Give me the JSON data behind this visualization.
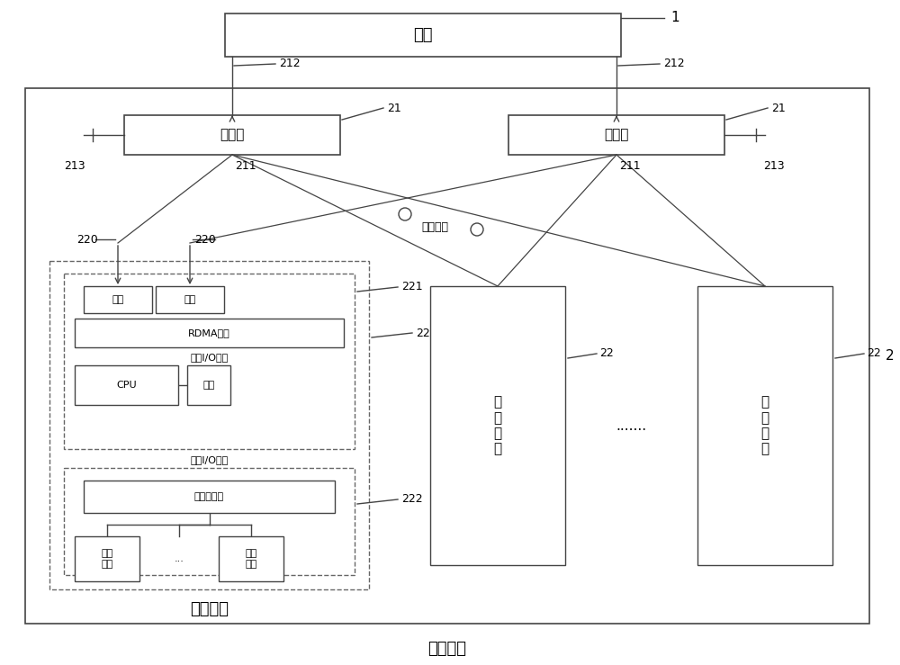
{
  "bg_color": "#ffffff",
  "line_color": "#444444",
  "box_edge_color": "#444444",
  "dashed_color": "#666666",
  "fig_width": 10.0,
  "fig_height": 7.39,
  "title": "存储系统",
  "host_label": "主机",
  "switch_label": "交换机",
  "inner_network_label": "内部网络",
  "storage_node_label": "存储节点",
  "iface_label": "接口",
  "rdma_label": "RDMA网卡",
  "inner_io_label": "内部I/O总线",
  "cpu_label": "CPU",
  "mem_label": "内存",
  "storage_ctrl_label": "存储控制器",
  "storage_chip_label": "存储\n芯片",
  "dots_label": ".......",
  "label_1": "1",
  "label_2": "2",
  "label_21": "21",
  "label_211": "211",
  "label_212": "212",
  "label_213": "213",
  "label_22": "22",
  "label_220": "220",
  "label_221": "221",
  "label_222": "222"
}
